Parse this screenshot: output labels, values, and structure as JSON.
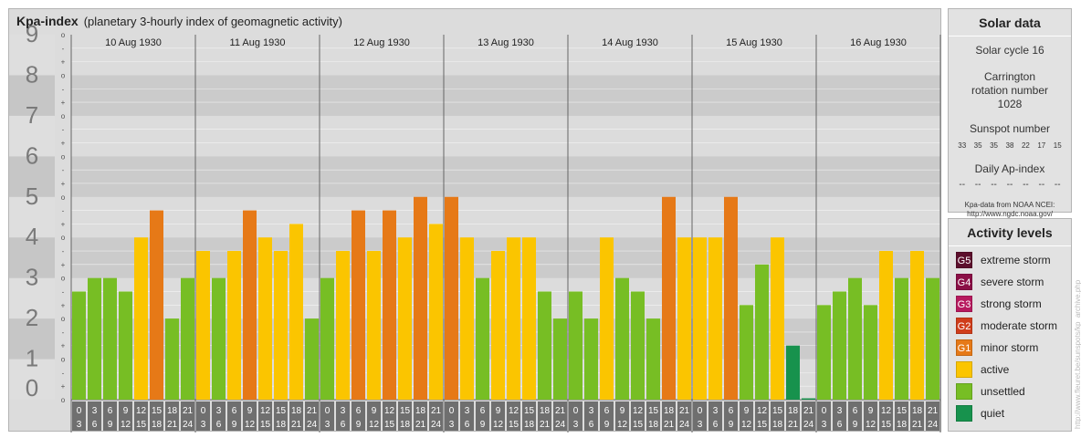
{
  "header": {
    "title": "Kpa-index",
    "subtitle": "(planetary 3-hourly index of geomagnetic activity)"
  },
  "chart_data": {
    "type": "bar",
    "title": "Kpa-index",
    "subtitle": "(planetary 3-hourly index of geomagnetic activity)",
    "ylim": [
      0,
      9
    ],
    "y_ticks": [
      "0",
      "1",
      "2",
      "3",
      "4",
      "5",
      "6",
      "7",
      "8",
      "9"
    ],
    "minor_ticks": [
      "o",
      "+",
      "-"
    ],
    "days": [
      "10 Aug 1930",
      "11 Aug 1930",
      "12 Aug 1930",
      "13 Aug 1930",
      "14 Aug 1930",
      "15 Aug 1930",
      "16 Aug 1930"
    ],
    "interval_starts": [
      "0",
      "3",
      "6",
      "9",
      "12",
      "15",
      "18",
      "21"
    ],
    "interval_ends": [
      "3",
      "6",
      "9",
      "12",
      "15",
      "18",
      "21",
      "24"
    ],
    "values": [
      [
        2.667,
        3.0,
        3.0,
        2.667,
        4.0,
        4.667,
        2.0,
        3.0
      ],
      [
        3.667,
        3.0,
        3.667,
        4.667,
        4.0,
        3.667,
        4.333,
        2.0
      ],
      [
        3.0,
        3.667,
        4.667,
        3.667,
        4.667,
        4.0,
        5.0,
        4.333
      ],
      [
        5.0,
        4.0,
        3.0,
        3.667,
        4.0,
        4.0,
        2.667,
        2.0
      ],
      [
        2.667,
        2.0,
        4.0,
        3.0,
        2.667,
        2.0,
        5.0,
        4.0
      ],
      [
        4.0,
        4.0,
        5.0,
        2.333,
        3.333,
        4.0,
        1.333,
        0.0
      ],
      [
        2.333,
        2.667,
        3.0,
        2.333,
        3.667,
        3.0,
        3.667,
        3.0
      ]
    ],
    "colors": {
      "quiet": "#17924d",
      "unsettled": "#77be24",
      "active": "#fbc500",
      "minor": "#e67917"
    }
  },
  "solar": {
    "title": "Solar data",
    "cycle": "Solar cycle 16",
    "carrington": "Carrington rotation number 1028",
    "sunspot_label": "Sunspot number",
    "sunspots": [
      "33",
      "35",
      "35",
      "38",
      "22",
      "17",
      "15"
    ],
    "ap_label": "Daily Ap-index",
    "ap_values": [
      "--",
      "--",
      "--",
      "--",
      "--",
      "--",
      "--"
    ],
    "credit_line1": "Kpa-data from NOAA NCEI:",
    "credit_line2": "http://www.ngdc.noaa.gov/"
  },
  "activity": {
    "title": "Activity levels",
    "levels": [
      {
        "code": "G5",
        "label": "extreme storm",
        "color": "#5c0f2c"
      },
      {
        "code": "G4",
        "label": "severe storm",
        "color": "#8b1046"
      },
      {
        "code": "G3",
        "label": "strong storm",
        "color": "#b71a5e"
      },
      {
        "code": "G2",
        "label": "moderate storm",
        "color": "#d03d1a"
      },
      {
        "code": "G1",
        "label": "minor storm",
        "color": "#e67917"
      },
      {
        "code": "",
        "label": "active",
        "color": "#fbc500"
      },
      {
        "code": "",
        "label": "unsettled",
        "color": "#77be24"
      },
      {
        "code": "",
        "label": "quiet",
        "color": "#17924d"
      }
    ]
  },
  "watermark": "http://www.fleuret.be/sunspots/kp_archive.php"
}
